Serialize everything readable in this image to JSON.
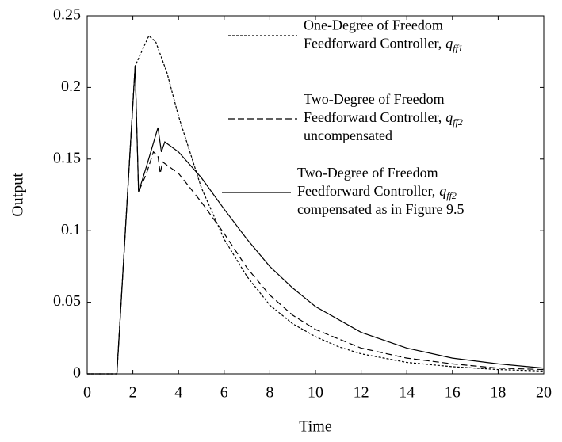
{
  "chart_data": {
    "type": "line",
    "xlabel": "Time",
    "ylabel": "Output",
    "xlim": [
      0,
      20
    ],
    "ylim": [
      0,
      0.25
    ],
    "xticks": [
      0,
      2,
      4,
      6,
      8,
      10,
      12,
      14,
      16,
      18,
      20
    ],
    "yticks": [
      0,
      0.05,
      0.1,
      0.15,
      0.2,
      0.25
    ],
    "series": [
      {
        "name_lines": [
          "One-Degree of Freedom",
          "Feedforward Controller,"
        ],
        "symbol": "q",
        "symbol_sub": "ff1",
        "color": "#000",
        "dash": "3,2",
        "x": [
          0,
          1.3,
          2.1,
          2.3,
          2.7,
          3,
          3.5,
          4,
          4.5,
          5,
          6,
          7,
          8,
          9,
          10,
          11,
          12,
          13,
          14,
          16,
          18,
          20
        ],
        "values": [
          0,
          0,
          0.215,
          0.222,
          0.236,
          0.232,
          0.21,
          0.18,
          0.155,
          0.13,
          0.094,
          0.068,
          0.048,
          0.035,
          0.026,
          0.019,
          0.014,
          0.011,
          0.008,
          0.005,
          0.003,
          0.002
        ]
      },
      {
        "name_lines": [
          "Two-Degree of Freedom",
          "Feedforward Controller,"
        ],
        "symbol": "q",
        "symbol_sub": "ff2",
        "name_suffix": "uncompensated",
        "color": "#000",
        "dash": "8,4",
        "x": [
          0,
          1.3,
          2.1,
          2.25,
          2.6,
          2.9,
          3.1,
          3.2,
          3.3,
          4,
          5,
          6,
          7,
          8,
          9,
          10,
          12,
          14,
          16,
          18,
          20
        ],
        "values": [
          0,
          0,
          0.215,
          0.127,
          0.14,
          0.155,
          0.152,
          0.14,
          0.148,
          0.14,
          0.12,
          0.098,
          0.074,
          0.055,
          0.041,
          0.031,
          0.018,
          0.011,
          0.007,
          0.004,
          0.003
        ]
      },
      {
        "name_lines": [
          "Two-Degree of Freedom",
          "Feedforward Controller,"
        ],
        "symbol": "q",
        "symbol_sub": "ff2",
        "name_suffix": "compensated as in Figure 9.5",
        "color": "#000",
        "dash": "none",
        "x": [
          0,
          1.3,
          2.1,
          2.25,
          2.6,
          3.1,
          3.25,
          3.4,
          4,
          5,
          6,
          7,
          8,
          9,
          10,
          12,
          14,
          16,
          18,
          20
        ],
        "values": [
          0,
          0,
          0.215,
          0.127,
          0.145,
          0.172,
          0.155,
          0.162,
          0.155,
          0.137,
          0.115,
          0.094,
          0.075,
          0.06,
          0.047,
          0.029,
          0.018,
          0.011,
          0.007,
          0.004
        ]
      }
    ]
  }
}
